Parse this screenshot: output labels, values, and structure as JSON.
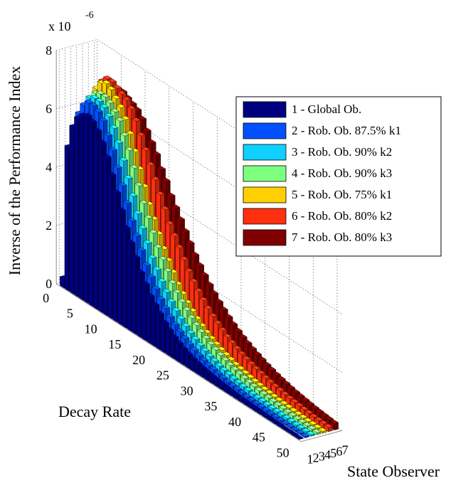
{
  "chart_data": {
    "type": "bar3d",
    "title": "",
    "zlabel": "Inverse of the Performance Index",
    "xlabel": "Decay Rate",
    "ylabel": "State Observer",
    "z_exponent_label": "x 10",
    "z_exponent_power": "-6",
    "z_ticks": [
      "0",
      "2",
      "4",
      "6",
      "8"
    ],
    "z_tick_values": [
      0,
      2,
      4,
      6,
      8
    ],
    "zlim": [
      0,
      8
    ],
    "x_ticks": [
      "0",
      "5",
      "10",
      "15",
      "20",
      "25",
      "30",
      "35",
      "40",
      "45",
      "50"
    ],
    "x_tick_values": [
      0,
      5,
      10,
      15,
      20,
      25,
      30,
      35,
      40,
      45,
      50
    ],
    "xlim": [
      0,
      51
    ],
    "y_ticks": [
      "1",
      "2",
      "3",
      "4",
      "5",
      "6",
      "7"
    ],
    "decay_rate": [
      1,
      2,
      3,
      4,
      5,
      6,
      7,
      8,
      9,
      10,
      11,
      12,
      13,
      14,
      15,
      16,
      17,
      18,
      19,
      20,
      21,
      22,
      23,
      24,
      25,
      26,
      27,
      28,
      29,
      30,
      31,
      32,
      33,
      34,
      35,
      36,
      37,
      38,
      39,
      40,
      41,
      42,
      43,
      44,
      45,
      46,
      47,
      48,
      49,
      50
    ],
    "grid": true,
    "legend_position": "right",
    "series": [
      {
        "name": "1 - Global Ob.",
        "color": "#00007f",
        "values": [
          0.3,
          4.9,
          5.7,
          6.1,
          6.3,
          6.4,
          6.3,
          6.1,
          5.8,
          5.4,
          4.9,
          4.4,
          3.9,
          3.4,
          3.0,
          2.6,
          2.2,
          1.9,
          1.6,
          1.4,
          1.2,
          1.0,
          0.85,
          0.72,
          0.62,
          0.53,
          0.45,
          0.39,
          0.33,
          0.29,
          0.25,
          0.22,
          0.19,
          0.17,
          0.15,
          0.13,
          0.11,
          0.1,
          0.09,
          0.08,
          0.07,
          0.06,
          0.05,
          0.05,
          0.04,
          0.04,
          0.03,
          0.03,
          0.03,
          0.02
        ]
      },
      {
        "name": "2 - Rob. Ob. 87.5% k1",
        "color": "#0050ff",
        "values": [
          0.4,
          5.3,
          6.1,
          6.5,
          6.7,
          6.7,
          6.6,
          6.4,
          6.0,
          5.6,
          5.1,
          4.6,
          4.1,
          3.6,
          3.2,
          2.8,
          2.4,
          2.1,
          1.8,
          1.55,
          1.35,
          1.15,
          1.0,
          0.86,
          0.74,
          0.64,
          0.55,
          0.47,
          0.41,
          0.35,
          0.31,
          0.27,
          0.23,
          0.2,
          0.18,
          0.16,
          0.14,
          0.12,
          0.11,
          0.1,
          0.09,
          0.08,
          0.07,
          0.06,
          0.06,
          0.05,
          0.05,
          0.04,
          0.04,
          0.04
        ]
      },
      {
        "name": "3 - Rob. Ob. 90% k2",
        "color": "#10d0ff",
        "values": [
          0.45,
          5.5,
          6.3,
          6.7,
          6.8,
          6.8,
          6.7,
          6.5,
          6.2,
          5.8,
          5.3,
          4.8,
          4.3,
          3.8,
          3.4,
          3.0,
          2.6,
          2.3,
          2.0,
          1.75,
          1.52,
          1.32,
          1.15,
          1.0,
          0.87,
          0.76,
          0.66,
          0.58,
          0.5,
          0.44,
          0.38,
          0.34,
          0.3,
          0.26,
          0.23,
          0.2,
          0.18,
          0.16,
          0.14,
          0.13,
          0.11,
          0.1,
          0.09,
          0.08,
          0.08,
          0.07,
          0.06,
          0.06,
          0.05,
          0.05
        ]
      },
      {
        "name": "4 - Rob. Ob. 90% k3",
        "color": "#7fff7f",
        "values": [
          0.5,
          5.7,
          6.5,
          6.8,
          6.9,
          6.9,
          6.8,
          6.6,
          6.4,
          6.0,
          5.6,
          5.1,
          4.6,
          4.1,
          3.7,
          3.3,
          2.9,
          2.6,
          2.3,
          2.0,
          1.78,
          1.57,
          1.39,
          1.23,
          1.09,
          0.96,
          0.85,
          0.75,
          0.67,
          0.59,
          0.52,
          0.46,
          0.41,
          0.37,
          0.33,
          0.29,
          0.26,
          0.23,
          0.21,
          0.19,
          0.17,
          0.15,
          0.14,
          0.12,
          0.11,
          0.1,
          0.09,
          0.09,
          0.08,
          0.07
        ]
      },
      {
        "name": "5 - Rob. Ob. 75% k1",
        "color": "#ffcf00",
        "values": [
          0.55,
          6.0,
          6.8,
          7.1,
          7.2,
          7.1,
          6.9,
          6.7,
          6.4,
          6.0,
          5.5,
          5.0,
          4.5,
          4.0,
          3.6,
          3.2,
          2.8,
          2.5,
          2.2,
          1.9,
          1.68,
          1.48,
          1.3,
          1.14,
          1.0,
          0.88,
          0.78,
          0.69,
          0.61,
          0.54,
          0.48,
          0.42,
          0.38,
          0.34,
          0.3,
          0.27,
          0.24,
          0.21,
          0.19,
          0.17,
          0.15,
          0.14,
          0.12,
          0.11,
          0.1,
          0.09,
          0.08,
          0.08,
          0.07,
          0.06
        ]
      },
      {
        "name": "6 - Rob. Ob. 80% k2",
        "color": "#ff3010",
        "values": [
          0.6,
          6.2,
          7.0,
          7.2,
          7.2,
          7.1,
          7.0,
          6.9,
          6.7,
          6.4,
          6.0,
          5.6,
          5.2,
          4.8,
          4.4,
          4.0,
          3.6,
          3.3,
          3.0,
          2.7,
          2.4,
          2.15,
          1.93,
          1.73,
          1.55,
          1.39,
          1.25,
          1.12,
          1.0,
          0.9,
          0.81,
          0.73,
          0.66,
          0.6,
          0.54,
          0.49,
          0.44,
          0.4,
          0.36,
          0.33,
          0.3,
          0.27,
          0.25,
          0.23,
          0.21,
          0.19,
          0.17,
          0.16,
          0.15,
          0.14
        ]
      },
      {
        "name": "7 - Rob. Ob. 80% k3",
        "color": "#7f0000",
        "values": [
          0.65,
          6.0,
          6.6,
          6.8,
          6.9,
          6.9,
          6.8,
          6.7,
          6.6,
          6.4,
          6.1,
          5.8,
          5.5,
          5.1,
          4.8,
          4.4,
          4.1,
          3.8,
          3.5,
          3.2,
          2.9,
          2.65,
          2.42,
          2.2,
          2.0,
          1.82,
          1.66,
          1.51,
          1.37,
          1.25,
          1.14,
          1.04,
          0.95,
          0.87,
          0.79,
          0.72,
          0.66,
          0.6,
          0.55,
          0.5,
          0.46,
          0.42,
          0.39,
          0.36,
          0.33,
          0.3,
          0.28,
          0.26,
          0.24,
          0.22
        ]
      }
    ]
  }
}
